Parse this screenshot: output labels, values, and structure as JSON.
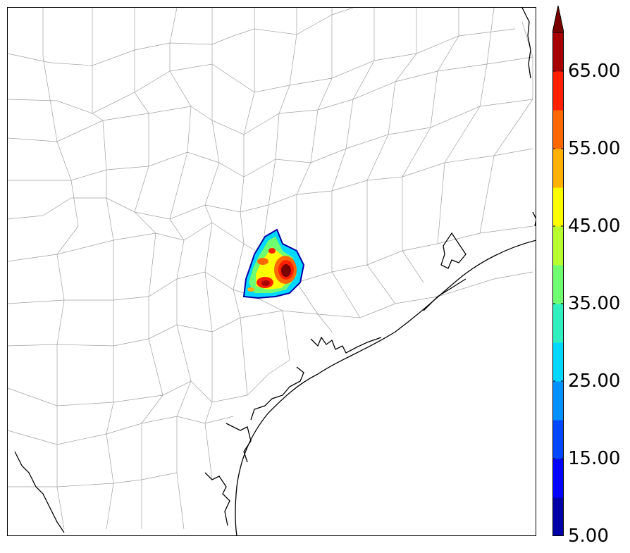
{
  "map": {
    "region": "Southeast Texas / Gulf Coast",
    "boundaries": "county lines",
    "coastline_color": "#000000",
    "county_line_color": "#9a9a9a"
  },
  "colorbar": {
    "extend": "max",
    "min": 5,
    "max": 70,
    "step": 5,
    "colors": [
      "#0000a8",
      "#0000ff",
      "#0048ff",
      "#0090ff",
      "#00d8ff",
      "#30f0c0",
      "#70ff70",
      "#b8ff30",
      "#ffff00",
      "#ffb000",
      "#ff6800",
      "#ff2000",
      "#a80000"
    ],
    "extend_color": "#7a0000",
    "labels": [
      {
        "value": 5,
        "text": "5.00"
      },
      {
        "value": 15,
        "text": "15.00"
      },
      {
        "value": 25,
        "text": "25.00"
      },
      {
        "value": 35,
        "text": "35.00"
      },
      {
        "value": 45,
        "text": "45.00"
      },
      {
        "value": 55,
        "text": "55.00"
      },
      {
        "value": 65,
        "text": "65.00"
      }
    ]
  }
}
